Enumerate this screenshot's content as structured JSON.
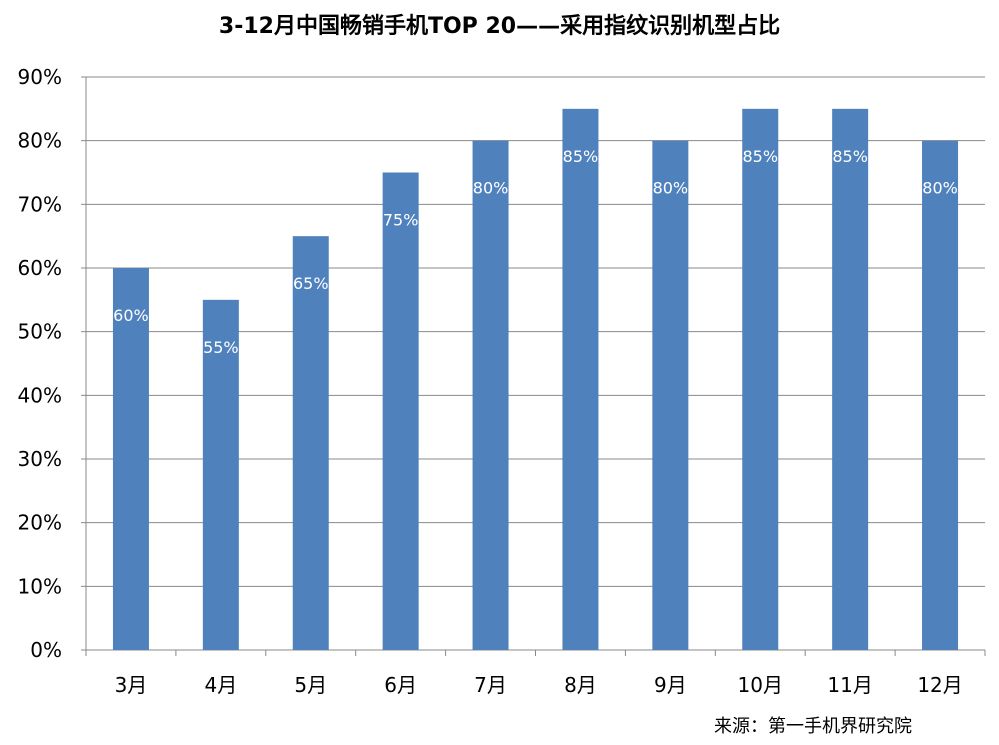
{
  "chart_data": {
    "type": "bar",
    "title": "3-12月中国畅销手机TOP 20——采用指纹识别机型占比",
    "categories": [
      "3月",
      "4月",
      "5月",
      "6月",
      "7月",
      "8月",
      "9月",
      "10月",
      "11月",
      "12月"
    ],
    "series": [
      {
        "values": [
          60,
          55,
          65,
          75,
          80,
          85,
          80,
          85,
          85,
          80
        ],
        "data_labels": [
          "60%",
          "55%",
          "65%",
          "75%",
          "80%",
          "85%",
          "80%",
          "85%",
          "85%",
          "80%"
        ]
      }
    ],
    "ylim": [
      0,
      90
    ],
    "yticks": [
      0,
      10,
      20,
      30,
      40,
      50,
      60,
      70,
      80,
      90
    ],
    "ytick_labels": [
      "0%",
      "10%",
      "20%",
      "30%",
      "40%",
      "50%",
      "60%",
      "70%",
      "80%",
      "90%"
    ],
    "xlabel": "",
    "ylabel": "",
    "grid": true,
    "legend": "none",
    "bar_color": "#4F81BD",
    "grid_color": "#888888",
    "label_color": "#FFFFFF"
  },
  "source": "来源：第一手机界研究院"
}
